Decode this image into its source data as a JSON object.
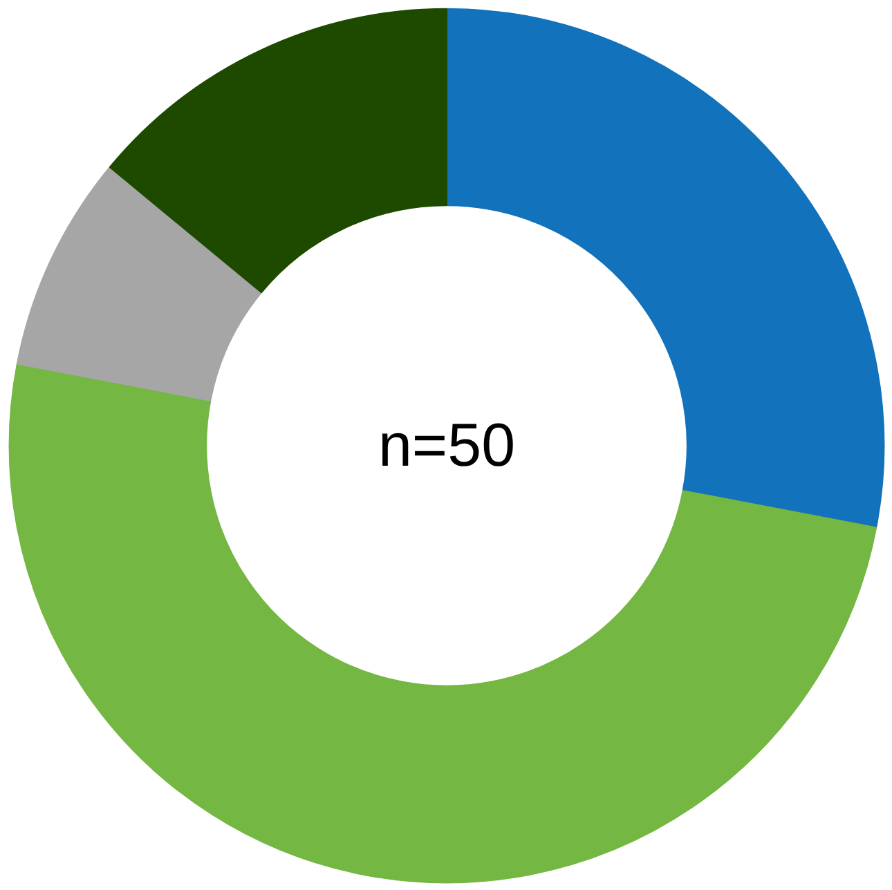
{
  "chart_data": {
    "type": "donut",
    "categories": [
      null,
      null,
      null,
      null
    ],
    "values": [
      28,
      50,
      8,
      14
    ],
    "colors": [
      "#1272bb",
      "#74b743",
      "#a6a6a6",
      "#1e4a00"
    ],
    "annotations": [
      "n=50"
    ]
  }
}
